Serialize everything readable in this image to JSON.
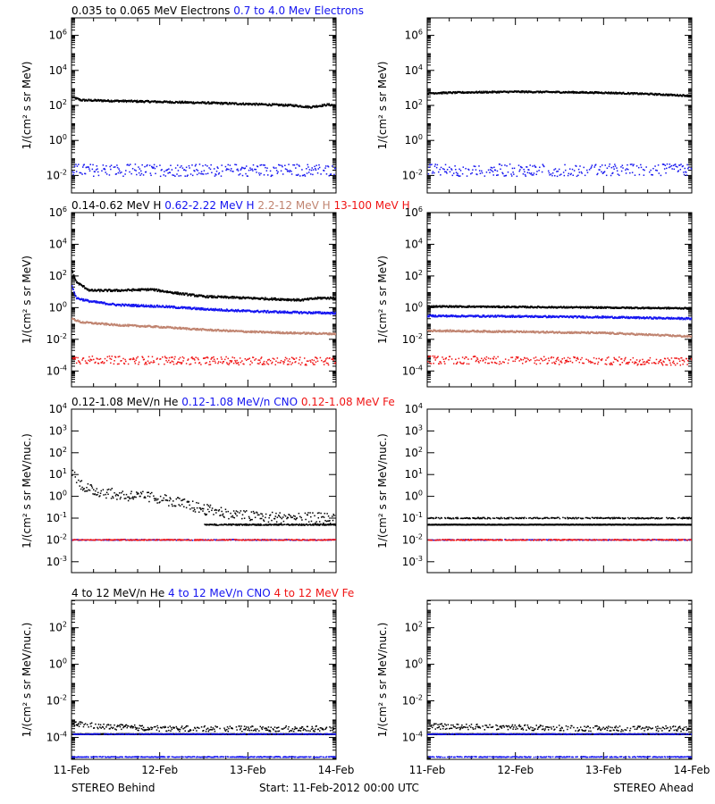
{
  "colors": {
    "black": "#000000",
    "blue": "#1414f0",
    "tan": "#c08470",
    "red": "#f01414"
  },
  "footer": {
    "left": "STEREO Behind",
    "center": "Start: 11-Feb-2012 00:00 UTC",
    "right": "STEREO Ahead"
  },
  "x_axis": {
    "ticks": [
      "11-Feb",
      "12-Feb",
      "13-Feb",
      "14-Feb"
    ],
    "range_days": [
      0,
      3
    ]
  },
  "chart_data": [
    {
      "type": "scatter",
      "row": 0,
      "position": "left",
      "log_y": true,
      "ylabel": "1/(cm² s sr MeV)",
      "ylim_exp": [
        -3,
        7
      ],
      "tick_exps": [
        -2,
        0,
        2,
        4,
        6
      ],
      "tick_labels": [
        "10-2",
        "100",
        "102",
        "104",
        "106"
      ],
      "legend": [
        {
          "text": "0.035 to 0.065 MeV Electrons",
          "color": "black"
        },
        {
          "text": "0.7 to 4.0 Mev Electrons",
          "color": "blue"
        }
      ],
      "series": [
        {
          "color": "black",
          "style": "line",
          "x": [
            0,
            0.1,
            0.5,
            1.0,
            1.5,
            2.0,
            2.5,
            2.7,
            2.9,
            3.0
          ],
          "y": [
            300,
            200,
            180,
            160,
            140,
            120,
            100,
            80,
            110,
            100
          ],
          "scatter": 0.05
        },
        {
          "color": "blue",
          "style": "dots",
          "x": [
            0,
            3
          ],
          "y": [
            0.02,
            0.02
          ],
          "scatter": 0.35
        }
      ]
    },
    {
      "type": "scatter",
      "row": 0,
      "position": "right",
      "log_y": true,
      "ylabel": "1/(cm² s sr MeV)",
      "ylim_exp": [
        -3,
        7
      ],
      "tick_exps": [
        -2,
        0,
        2,
        4,
        6
      ],
      "tick_labels": [
        "10-2",
        "100",
        "102",
        "104",
        "106"
      ],
      "legend": [],
      "series": [
        {
          "color": "black",
          "style": "line",
          "x": [
            0,
            0.5,
            1.0,
            1.5,
            2.0,
            2.5,
            3.0
          ],
          "y": [
            500,
            560,
            600,
            570,
            530,
            450,
            350
          ],
          "scatter": 0.04
        },
        {
          "color": "blue",
          "style": "dots",
          "x": [
            0,
            3
          ],
          "y": [
            0.02,
            0.02
          ],
          "scatter": 0.35
        }
      ]
    },
    {
      "type": "scatter",
      "row": 1,
      "position": "left",
      "log_y": true,
      "ylabel": "1/(cm² s sr MeV)",
      "ylim_exp": [
        -5,
        6
      ],
      "tick_exps": [
        -4,
        -2,
        0,
        2,
        4,
        6
      ],
      "tick_labels": [
        "10-4",
        "10-2",
        "100",
        "102",
        "104",
        "106"
      ],
      "legend": [
        {
          "text": "0.14-0.62 MeV H",
          "color": "black"
        },
        {
          "text": "0.62-2.22 MeV H",
          "color": "blue"
        },
        {
          "text": "2.2-12 MeV H",
          "color": "tan"
        },
        {
          "text": "13-100 MeV H",
          "color": "red"
        }
      ],
      "series": [
        {
          "color": "black",
          "style": "line",
          "x": [
            0,
            0.05,
            0.2,
            0.5,
            0.9,
            1.2,
            1.5,
            2.0,
            2.6,
            2.8,
            3.0
          ],
          "y": [
            200,
            40,
            12,
            12,
            14,
            8,
            5,
            4,
            3,
            4,
            4
          ],
          "scatter": 0.06
        },
        {
          "color": "blue",
          "style": "line",
          "x": [
            0,
            0.05,
            0.2,
            0.5,
            1.0,
            1.5,
            2.0,
            2.5,
            3.0
          ],
          "y": [
            20,
            4,
            2.5,
            1.5,
            1.2,
            0.8,
            0.6,
            0.5,
            0.45
          ],
          "scatter": 0.06
        },
        {
          "color": "tan",
          "style": "line",
          "x": [
            0,
            0.1,
            0.5,
            1.0,
            1.5,
            2.0,
            2.5,
            3.0
          ],
          "y": [
            0.2,
            0.12,
            0.08,
            0.06,
            0.04,
            0.03,
            0.025,
            0.022
          ],
          "scatter": 0.05
        },
        {
          "color": "red",
          "style": "dots",
          "x": [
            0,
            3
          ],
          "y": [
            0.0005,
            0.0004
          ],
          "scatter": 0.25
        }
      ]
    },
    {
      "type": "scatter",
      "row": 1,
      "position": "right",
      "log_y": true,
      "ylabel": "1/(cm² s sr MeV)",
      "ylim_exp": [
        -5,
        6
      ],
      "tick_exps": [
        -4,
        -2,
        0,
        2,
        4,
        6
      ],
      "tick_labels": [
        "10-4",
        "10-2",
        "100",
        "102",
        "104",
        "106"
      ],
      "legend": [],
      "series": [
        {
          "color": "black",
          "style": "line",
          "x": [
            0,
            1,
            2,
            3
          ],
          "y": [
            1.2,
            1.1,
            1.0,
            0.9
          ],
          "scatter": 0.04
        },
        {
          "color": "blue",
          "style": "line",
          "x": [
            0,
            1,
            2,
            3
          ],
          "y": [
            0.3,
            0.28,
            0.25,
            0.2
          ],
          "scatter": 0.05
        },
        {
          "color": "tan",
          "style": "line",
          "x": [
            0,
            1,
            2,
            3
          ],
          "y": [
            0.035,
            0.03,
            0.025,
            0.015
          ],
          "scatter": 0.05
        },
        {
          "color": "red",
          "style": "dots",
          "x": [
            0,
            3
          ],
          "y": [
            0.0005,
            0.0004
          ],
          "scatter": 0.25
        }
      ]
    },
    {
      "type": "scatter",
      "row": 2,
      "position": "left",
      "log_y": true,
      "ylabel": "1/(cm² s sr MeV/nuc.)",
      "ylim_exp": [
        -3.5,
        4
      ],
      "tick_exps": [
        -3,
        -2,
        -1,
        0,
        1,
        2,
        3,
        4
      ],
      "tick_labels": [
        "10-3",
        "10-2",
        "10-1",
        "100",
        "101",
        "102",
        "103",
        "104"
      ],
      "legend": [
        {
          "text": "0.12-1.08 MeV/n He",
          "color": "black"
        },
        {
          "text": "0.12-1.08 MeV/n CNO",
          "color": "blue"
        },
        {
          "text": "0.12-1.08 MeV Fe",
          "color": "red"
        }
      ],
      "series": [
        {
          "color": "black",
          "style": "dots",
          "x": [
            0,
            0.05,
            0.2,
            0.5,
            1.0,
            1.3,
            1.5,
            2.0,
            2.5,
            3.0
          ],
          "y": [
            15,
            5,
            2,
            1.2,
            0.8,
            0.4,
            0.25,
            0.12,
            0.1,
            0.1
          ],
          "scatter": 0.25
        },
        {
          "color": "black",
          "style": "dots",
          "x": [
            1.5,
            3.0
          ],
          "y": [
            0.05,
            0.05
          ],
          "scatter": 0.03
        },
        {
          "color": "blue",
          "style": "dots",
          "x": [
            0,
            3
          ],
          "y": [
            0.01,
            0.01
          ],
          "scatter": 0.02
        },
        {
          "color": "red",
          "style": "dots",
          "x": [
            0,
            3
          ],
          "y": [
            0.01,
            0.01
          ],
          "scatter": 0.02
        }
      ]
    },
    {
      "type": "scatter",
      "row": 2,
      "position": "right",
      "log_y": true,
      "ylabel": "1/(cm² s sr MeV/nuc.)",
      "ylim_exp": [
        -3.5,
        4
      ],
      "tick_exps": [
        -3,
        -2,
        -1,
        0,
        1,
        2,
        3,
        4
      ],
      "tick_labels": [
        "10-3",
        "10-2",
        "10-1",
        "100",
        "101",
        "102",
        "103",
        "104"
      ],
      "legend": [],
      "series": [
        {
          "color": "black",
          "style": "line",
          "x": [
            0,
            3
          ],
          "y": [
            0.05,
            0.05
          ],
          "scatter": 0.01
        },
        {
          "color": "black",
          "style": "dots",
          "x": [
            0,
            3
          ],
          "y": [
            0.1,
            0.1
          ],
          "scatter": 0.03
        },
        {
          "color": "blue",
          "style": "dots",
          "x": [
            0,
            3
          ],
          "y": [
            0.01,
            0.01
          ],
          "scatter": 0.02
        },
        {
          "color": "red",
          "style": "dots",
          "x": [
            0,
            3
          ],
          "y": [
            0.01,
            0.01
          ],
          "scatter": 0.02
        }
      ]
    },
    {
      "type": "scatter",
      "row": 3,
      "position": "left",
      "log_y": true,
      "ylabel": "1/(cm² s sr MeV/nuc.)",
      "ylim_exp": [
        -5.2,
        3.5
      ],
      "tick_exps": [
        -4,
        -2,
        0,
        2
      ],
      "tick_labels": [
        "10-4",
        "10-2",
        "100",
        "102"
      ],
      "legend": [
        {
          "text": "4 to 12 MeV/n He",
          "color": "black"
        },
        {
          "text": "4 to 12 MeV/n CNO",
          "color": "blue"
        },
        {
          "text": "4 to 12 MeV Fe",
          "color": "red"
        }
      ],
      "series": [
        {
          "color": "black",
          "style": "dots",
          "x": [
            0,
            0.3,
            1,
            2,
            3
          ],
          "y": [
            0.0006,
            0.0004,
            0.0003,
            0.0003,
            0.0003
          ],
          "scatter": 0.15
        },
        {
          "color": "black",
          "style": "line",
          "x": [
            0,
            3
          ],
          "y": [
            0.00015,
            0.00015
          ],
          "scatter": 0.01
        },
        {
          "color": "blue",
          "style": "dots",
          "x": [
            0,
            3
          ],
          "y": [
            0.00015,
            0.00015
          ],
          "scatter": 0.02
        },
        {
          "color": "blue",
          "style": "dots",
          "x": [
            0,
            3
          ],
          "y": [
            8.5e-06,
            8.5e-06
          ],
          "scatter": 0.02
        }
      ]
    },
    {
      "type": "scatter",
      "row": 3,
      "position": "right",
      "log_y": true,
      "ylabel": "1/(cm² s sr MeV/nuc.)",
      "ylim_exp": [
        -5.2,
        3.5
      ],
      "tick_exps": [
        -4,
        -2,
        0,
        2
      ],
      "tick_labels": [
        "10-4",
        "10-2",
        "100",
        "102"
      ],
      "legend": [],
      "series": [
        {
          "color": "black",
          "style": "dots",
          "x": [
            0,
            1,
            2,
            3
          ],
          "y": [
            0.0004,
            0.00035,
            0.0003,
            0.0003
          ],
          "scatter": 0.15
        },
        {
          "color": "black",
          "style": "line",
          "x": [
            0,
            3
          ],
          "y": [
            0.00015,
            0.00015
          ],
          "scatter": 0.01
        },
        {
          "color": "blue",
          "style": "dots",
          "x": [
            0,
            3
          ],
          "y": [
            0.00015,
            0.00015
          ],
          "scatter": 0.02
        },
        {
          "color": "blue",
          "style": "dots",
          "x": [
            0,
            3
          ],
          "y": [
            8.5e-06,
            8.5e-06
          ],
          "scatter": 0.02
        }
      ]
    }
  ]
}
